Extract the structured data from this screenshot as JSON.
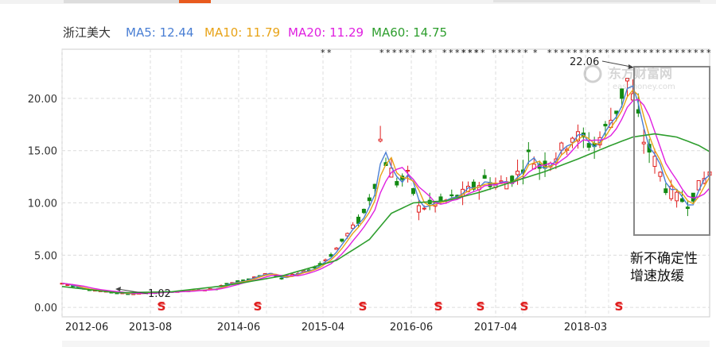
{
  "chart_data": {
    "type": "line",
    "stock_name": "浙江美大",
    "legend": [
      {
        "label": "MA5: 12.44",
        "color": "#4a7fd4"
      },
      {
        "label": "MA10: 11.79",
        "color": "#e8a317"
      },
      {
        "label": "MA20: 11.29",
        "color": "#e020e0"
      },
      {
        "label": "MA60: 14.75",
        "color": "#2e9e2e"
      }
    ],
    "y_ticks": [
      "0.00",
      "5.00",
      "10.00",
      "15.00",
      "20.00"
    ],
    "ylim": [
      -0.9,
      24.7
    ],
    "x_ticks": [
      "2012-06",
      "2013-08",
      "2014-06",
      "2015-04",
      "2016-06",
      "2017-04",
      "2018-03"
    ],
    "grid": true,
    "annotations": {
      "low": "1.02",
      "high": "22.06",
      "note_line1": "新不确定性",
      "note_line2": "增速放缓",
      "s_marker": "S"
    },
    "price_path": [
      [
        0,
        2.3
      ],
      [
        4,
        1.8
      ],
      [
        8,
        1.5
      ],
      [
        12,
        1.3
      ],
      [
        16,
        1.4
      ],
      [
        20,
        1.5
      ],
      [
        24,
        1.6
      ],
      [
        28,
        1.8
      ],
      [
        30,
        2.3
      ],
      [
        33,
        2.6
      ],
      [
        36,
        3.0
      ],
      [
        38,
        3.3
      ],
      [
        40,
        2.8
      ],
      [
        43,
        3.2
      ],
      [
        46,
        3.8
      ],
      [
        49,
        5.0
      ],
      [
        52,
        7.0
      ],
      [
        55,
        9.0
      ],
      [
        57,
        12.0
      ],
      [
        58,
        16.0
      ],
      [
        59,
        14.0
      ],
      [
        61,
        12.0
      ],
      [
        63,
        12.5
      ],
      [
        65,
        9.5
      ],
      [
        67,
        9.8
      ],
      [
        70,
        10.2
      ],
      [
        73,
        10.8
      ],
      [
        75,
        11.5
      ],
      [
        77,
        12.2
      ],
      [
        79,
        11.8
      ],
      [
        81,
        12.0
      ],
      [
        83,
        12.8
      ],
      [
        85,
        14.5
      ],
      [
        87,
        13.5
      ],
      [
        89,
        14.2
      ],
      [
        91,
        15.0
      ],
      [
        93,
        16.5
      ],
      [
        95,
        16.0
      ],
      [
        97,
        15.5
      ],
      [
        99,
        17.0
      ],
      [
        101,
        19.0
      ],
      [
        103,
        21.8
      ],
      [
        104,
        20.0
      ],
      [
        106,
        16.0
      ],
      [
        108,
        14.0
      ],
      [
        110,
        11.5
      ],
      [
        112,
        10.5
      ],
      [
        114,
        10.0
      ],
      [
        116,
        11.5
      ],
      [
        118,
        13.0
      ]
    ],
    "ma60_path": [
      [
        0,
        2.0
      ],
      [
        10,
        1.4
      ],
      [
        20,
        1.5
      ],
      [
        30,
        2.1
      ],
      [
        40,
        3.0
      ],
      [
        50,
        4.5
      ],
      [
        56,
        6.5
      ],
      [
        60,
        9.0
      ],
      [
        64,
        10.0
      ],
      [
        70,
        10.2
      ],
      [
        76,
        11.0
      ],
      [
        82,
        12.0
      ],
      [
        88,
        13.0
      ],
      [
        94,
        14.2
      ],
      [
        100,
        15.5
      ],
      [
        104,
        16.3
      ],
      [
        108,
        16.6
      ],
      [
        112,
        16.3
      ],
      [
        116,
        15.5
      ],
      [
        118,
        14.9
      ]
    ]
  }
}
